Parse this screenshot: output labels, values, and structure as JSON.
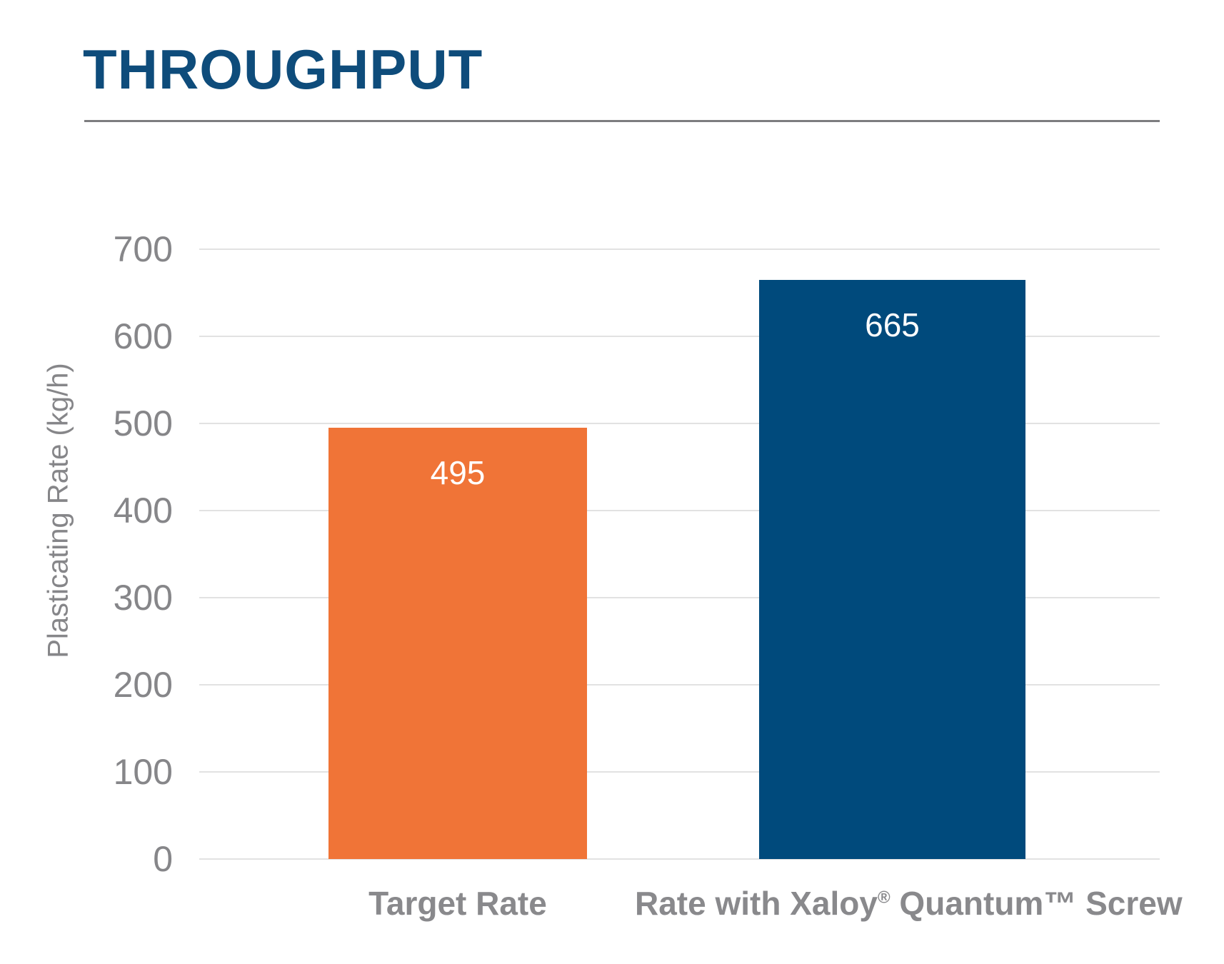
{
  "header": {
    "title": "THROUGHPUT"
  },
  "chart_data": {
    "type": "bar",
    "title": "THROUGHPUT",
    "categories": [
      "Target Rate",
      "Rate with Xaloy® Quantum™ Screw"
    ],
    "values": [
      495,
      665
    ],
    "value_labels": [
      "495",
      "665"
    ],
    "bar_colors": [
      "#f07437",
      "#004a7c"
    ],
    "xlabel": "",
    "ylabel": "Plasticating Rate (kg/h)",
    "ylim": [
      0,
      700
    ],
    "yticks": [
      0,
      100,
      200,
      300,
      400,
      500,
      600,
      700
    ],
    "grid": true,
    "legend": "none"
  },
  "labels": {
    "category1": "Target Rate",
    "category2": {
      "part1": "Rate with Xaloy",
      "reg": "®",
      "part2": " Quantum™ Screw"
    }
  },
  "colors": {
    "title": "#0e4c7b",
    "title_rule": "#7d7d80",
    "bar_orange": "#f07437",
    "bar_blue": "#004a7c",
    "gridline": "#e2e2e2",
    "axis_text": "#868689",
    "category_text": "#89898c",
    "value_text": "#ffffff"
  }
}
